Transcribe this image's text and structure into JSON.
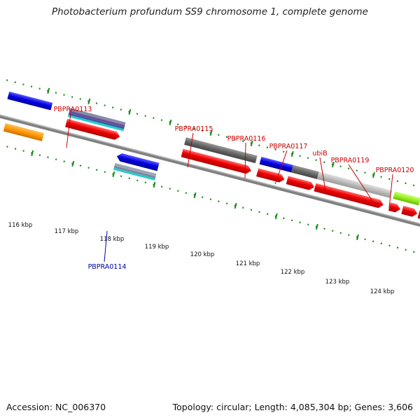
{
  "title": "Photobacterium profundum SS9 chromosome 1, complete genome",
  "footer": {
    "accession": "Accession: NC_006370",
    "topology": "Topology: circular; Length: 4,085,304 bp; Genes: 3,606"
  },
  "scale": {
    "ticks": [
      "116 kbp",
      "117 kbp",
      "118 kbp",
      "119 kbp",
      "120 kbp",
      "121 kbp",
      "122 kbp",
      "123 kbp",
      "124 kbp"
    ]
  },
  "genes": [
    {
      "label": "PBPRA0113",
      "color": "#cc0000"
    },
    {
      "label": "PBPRA0114",
      "color": "#0000aa"
    },
    {
      "label": "PBPRA0115",
      "color": "#cc0000"
    },
    {
      "label": "PBPRA0116",
      "color": "#cc0000"
    },
    {
      "label": "PBPRA0117",
      "color": "#cc0000"
    },
    {
      "label": "ubiB",
      "color": "#cc0000"
    },
    {
      "label": "PBPRA0119",
      "color": "#cc0000"
    },
    {
      "label": "PBPRA0120",
      "color": "#cc0000"
    }
  ],
  "colors": {
    "backbone": "#808080",
    "tick": "#1a8a1a",
    "cds": "#ee0000",
    "blue_feature": "#0000e0",
    "orange_feature": "#ff9900",
    "gray_feature": "#666666",
    "lightgray_feature": "#bbbbbb",
    "lime_feature": "#99ee22",
    "cyan_feature": "#22cccc",
    "purple_feature": "#6a4c9c"
  }
}
